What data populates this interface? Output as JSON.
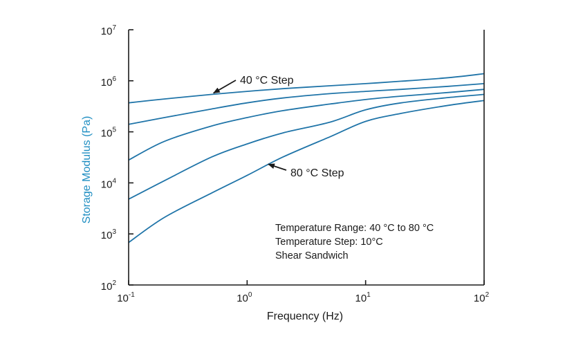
{
  "chart_data": {
    "type": "line",
    "xlabel": "Frequency (Hz)",
    "ylabel": "Storage Modulus (Pa)",
    "xscale": "log",
    "yscale": "log",
    "xlim": [
      0.1,
      100
    ],
    "ylim": [
      100,
      10000000
    ],
    "x_ticks": [
      {
        "base": "10",
        "exp": "-1"
      },
      {
        "base": "10",
        "exp": "0"
      },
      {
        "base": "10",
        "exp": "1"
      },
      {
        "base": "10",
        "exp": "2"
      }
    ],
    "y_ticks": [
      {
        "base": "10",
        "exp": "2"
      },
      {
        "base": "10",
        "exp": "3"
      },
      {
        "base": "10",
        "exp": "4"
      },
      {
        "base": "10",
        "exp": "5"
      },
      {
        "base": "10",
        "exp": "6"
      },
      {
        "base": "10",
        "exp": "7"
      }
    ],
    "grid": false,
    "line_color": "#1f74a8",
    "ylabel_color": "#1f8ec2",
    "axis_color": "#1a1a1a",
    "series": [
      {
        "x": [
          0.1,
          0.2,
          0.5,
          1,
          2,
          5,
          10,
          20,
          50,
          100
        ],
        "y": [
          370000,
          440000,
          540000,
          620000,
          700000,
          800000,
          880000,
          980000,
          1150000,
          1380000
        ]
      },
      {
        "x": [
          0.1,
          0.2,
          0.5,
          1,
          2,
          5,
          10,
          20,
          50,
          100
        ],
        "y": [
          140000,
          190000,
          280000,
          370000,
          460000,
          560000,
          620000,
          680000,
          780000,
          880000
        ]
      },
      {
        "x": [
          0.1,
          0.2,
          0.5,
          1,
          2,
          5,
          10,
          20,
          50,
          100
        ],
        "y": [
          28000,
          65000,
          130000,
          190000,
          260000,
          350000,
          430000,
          500000,
          590000,
          680000
        ]
      },
      {
        "x": [
          0.1,
          0.2,
          0.5,
          1,
          2,
          5,
          10,
          20,
          50,
          100
        ],
        "y": [
          4800,
          11000,
          32000,
          58000,
          95000,
          155000,
          270000,
          370000,
          470000,
          540000
        ]
      },
      {
        "x": [
          0.1,
          0.2,
          0.5,
          1,
          2,
          5,
          10,
          20,
          50,
          100
        ],
        "y": [
          680,
          2100,
          6300,
          14000,
          32000,
          80000,
          160000,
          230000,
          330000,
          410000
        ]
      }
    ],
    "annotations": [
      {
        "text": "40 °C Step",
        "target_series": 0,
        "target_x": 0.5
      },
      {
        "text": "80 °C Step",
        "target_series": 4,
        "target_x": 1.45
      }
    ],
    "notes": [
      "Temperature Range: 40 °C to 80 °C",
      "Temperature Step: 10°C",
      "Shear Sandwich"
    ]
  }
}
